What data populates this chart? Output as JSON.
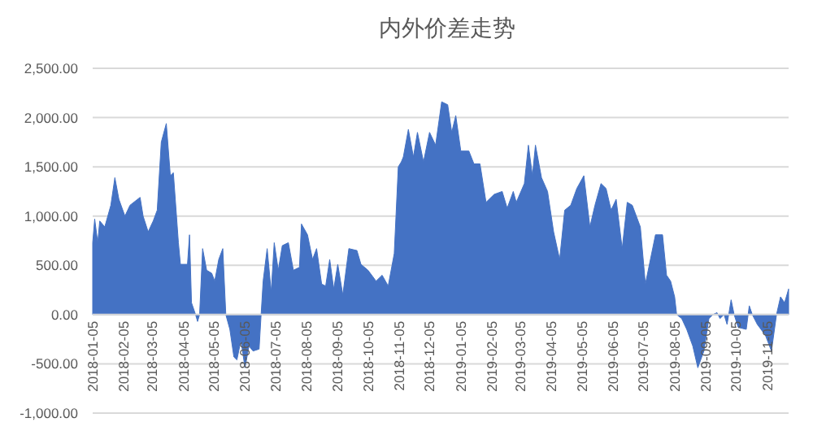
{
  "chart_data": {
    "type": "area",
    "title": "内外价差走势",
    "x": [
      "2018-01-05",
      "2018-01-07",
      "2018-01-10",
      "2018-01-12",
      "2018-01-17",
      "2018-01-23",
      "2018-01-27",
      "2018-01-31",
      "2018-02-06",
      "2018-02-11",
      "2018-02-21",
      "2018-02-24",
      "2018-03-01",
      "2018-03-06",
      "2018-03-10",
      "2018-03-14",
      "2018-03-19",
      "2018-03-23",
      "2018-03-26",
      "2018-03-31",
      "2018-04-02",
      "2018-04-09",
      "2018-04-11",
      "2018-04-13",
      "2018-04-17",
      "2018-04-19",
      "2018-04-21",
      "2018-04-24",
      "2018-04-28",
      "2018-05-03",
      "2018-05-06",
      "2018-05-10",
      "2018-05-14",
      "2018-05-17",
      "2018-05-21",
      "2018-05-25",
      "2018-05-28",
      "2018-06-01",
      "2018-06-05",
      "2018-06-09",
      "2018-06-13",
      "2018-06-19",
      "2018-06-21",
      "2018-06-23",
      "2018-06-27",
      "2018-07-01",
      "2018-07-04",
      "2018-07-08",
      "2018-07-12",
      "2018-07-18",
      "2018-07-23",
      "2018-07-29",
      "2018-07-31",
      "2018-08-06",
      "2018-08-11",
      "2018-08-15",
      "2018-08-20",
      "2018-08-24",
      "2018-08-28",
      "2018-09-01",
      "2018-09-05",
      "2018-09-10",
      "2018-09-16",
      "2018-09-24",
      "2018-09-28",
      "2018-10-05",
      "2018-10-13",
      "2018-10-19",
      "2018-10-25",
      "2018-10-31",
      "2018-11-04",
      "2018-11-07",
      "2018-11-09",
      "2018-11-14",
      "2018-11-19",
      "2018-11-23",
      "2018-11-29",
      "2018-12-05",
      "2018-12-11",
      "2018-12-17",
      "2018-12-23",
      "2018-12-27",
      "2018-12-31",
      "2019-01-05",
      "2019-01-13",
      "2019-01-18",
      "2019-01-24",
      "2019-01-30",
      "2019-02-07",
      "2019-02-15",
      "2019-02-20",
      "2019-02-26",
      "2019-03-01",
      "2019-03-09",
      "2019-03-13",
      "2019-03-17",
      "2019-03-20",
      "2019-03-26",
      "2019-04-01",
      "2019-04-07",
      "2019-04-13",
      "2019-04-18",
      "2019-04-24",
      "2019-04-30",
      "2019-05-07",
      "2019-05-13",
      "2019-05-18",
      "2019-05-24",
      "2019-05-29",
      "2019-06-03",
      "2019-06-08",
      "2019-06-14",
      "2019-06-19",
      "2019-06-24",
      "2019-07-02",
      "2019-07-07",
      "2019-07-12",
      "2019-07-17",
      "2019-07-24",
      "2019-07-28",
      "2019-08-01",
      "2019-08-05",
      "2019-08-07",
      "2019-08-12",
      "2019-08-17",
      "2019-08-23",
      "2019-08-28",
      "2019-09-03",
      "2019-09-08",
      "2019-09-12",
      "2019-09-16",
      "2019-09-19",
      "2019-09-23",
      "2019-09-26",
      "2019-09-30",
      "2019-10-03",
      "2019-10-07",
      "2019-10-15",
      "2019-10-18",
      "2019-10-21",
      "2019-10-26",
      "2019-11-03",
      "2019-11-09",
      "2019-11-14",
      "2019-11-18",
      "2019-11-22",
      "2019-11-26"
    ],
    "series": [
      {
        "color": "#4472c4",
        "values": [
          730,
          970,
          730,
          950,
          890,
          1110,
          1390,
          1170,
          1000,
          1110,
          1190,
          1000,
          840,
          950,
          1060,
          1750,
          1940,
          1410,
          1440,
          730,
          510,
          510,
          810,
          120,
          0,
          -70,
          0,
          670,
          450,
          420,
          340,
          560,
          670,
          0,
          -150,
          -430,
          -460,
          -260,
          -540,
          -320,
          -370,
          -350,
          0,
          340,
          670,
          230,
          730,
          450,
          700,
          730,
          450,
          480,
          920,
          810,
          560,
          670,
          310,
          290,
          560,
          260,
          510,
          200,
          670,
          650,
          510,
          450,
          340,
          400,
          290,
          620,
          1500,
          1550,
          1600,
          1880,
          1600,
          1850,
          1550,
          1850,
          1720,
          2160,
          2130,
          1850,
          2020,
          1660,
          1660,
          1530,
          1530,
          1140,
          1220,
          1250,
          1080,
          1250,
          1140,
          1330,
          1720,
          1410,
          1720,
          1390,
          1250,
          840,
          560,
          1060,
          1110,
          1280,
          1410,
          890,
          1110,
          1330,
          1280,
          1060,
          1170,
          670,
          1140,
          1110,
          890,
          310,
          560,
          810,
          810,
          400,
          340,
          180,
          0,
          -40,
          -150,
          -320,
          -540,
          -370,
          -40,
          0,
          20,
          -40,
          0,
          -100,
          150,
          0,
          -130,
          -150,
          90,
          0,
          -100,
          -210,
          -370,
          0,
          180,
          120,
          260
        ]
      }
    ],
    "xlim": [
      "2018-01-05",
      "2019-11-26"
    ],
    "xticks": [
      "2018-01-05",
      "2018-02-05",
      "2018-03-05",
      "2018-04-05",
      "2018-05-05",
      "2018-06-05",
      "2018-07-05",
      "2018-08-05",
      "2018-09-05",
      "2018-10-05",
      "2018-11-05",
      "2018-12-05",
      "2019-01-05",
      "2019-02-05",
      "2019-03-05",
      "2019-04-05",
      "2019-05-05",
      "2019-06-05",
      "2019-07-05",
      "2019-08-05",
      "2019-09-05",
      "2019-10-05",
      "2019-11-05"
    ],
    "ylim": [
      -1000,
      2500
    ],
    "yticks": [
      {
        "value": -1000,
        "label": "-1,000.00"
      },
      {
        "value": -500,
        "label": "-500.00"
      },
      {
        "value": 0,
        "label": "0.00"
      },
      {
        "value": 500,
        "label": "500.00"
      },
      {
        "value": 1000,
        "label": "1,000.00"
      },
      {
        "value": 1500,
        "label": "1,500.00"
      },
      {
        "value": 2000,
        "label": "2,000.00"
      },
      {
        "value": 2500,
        "label": "2,500.00"
      }
    ],
    "grid": "y"
  }
}
